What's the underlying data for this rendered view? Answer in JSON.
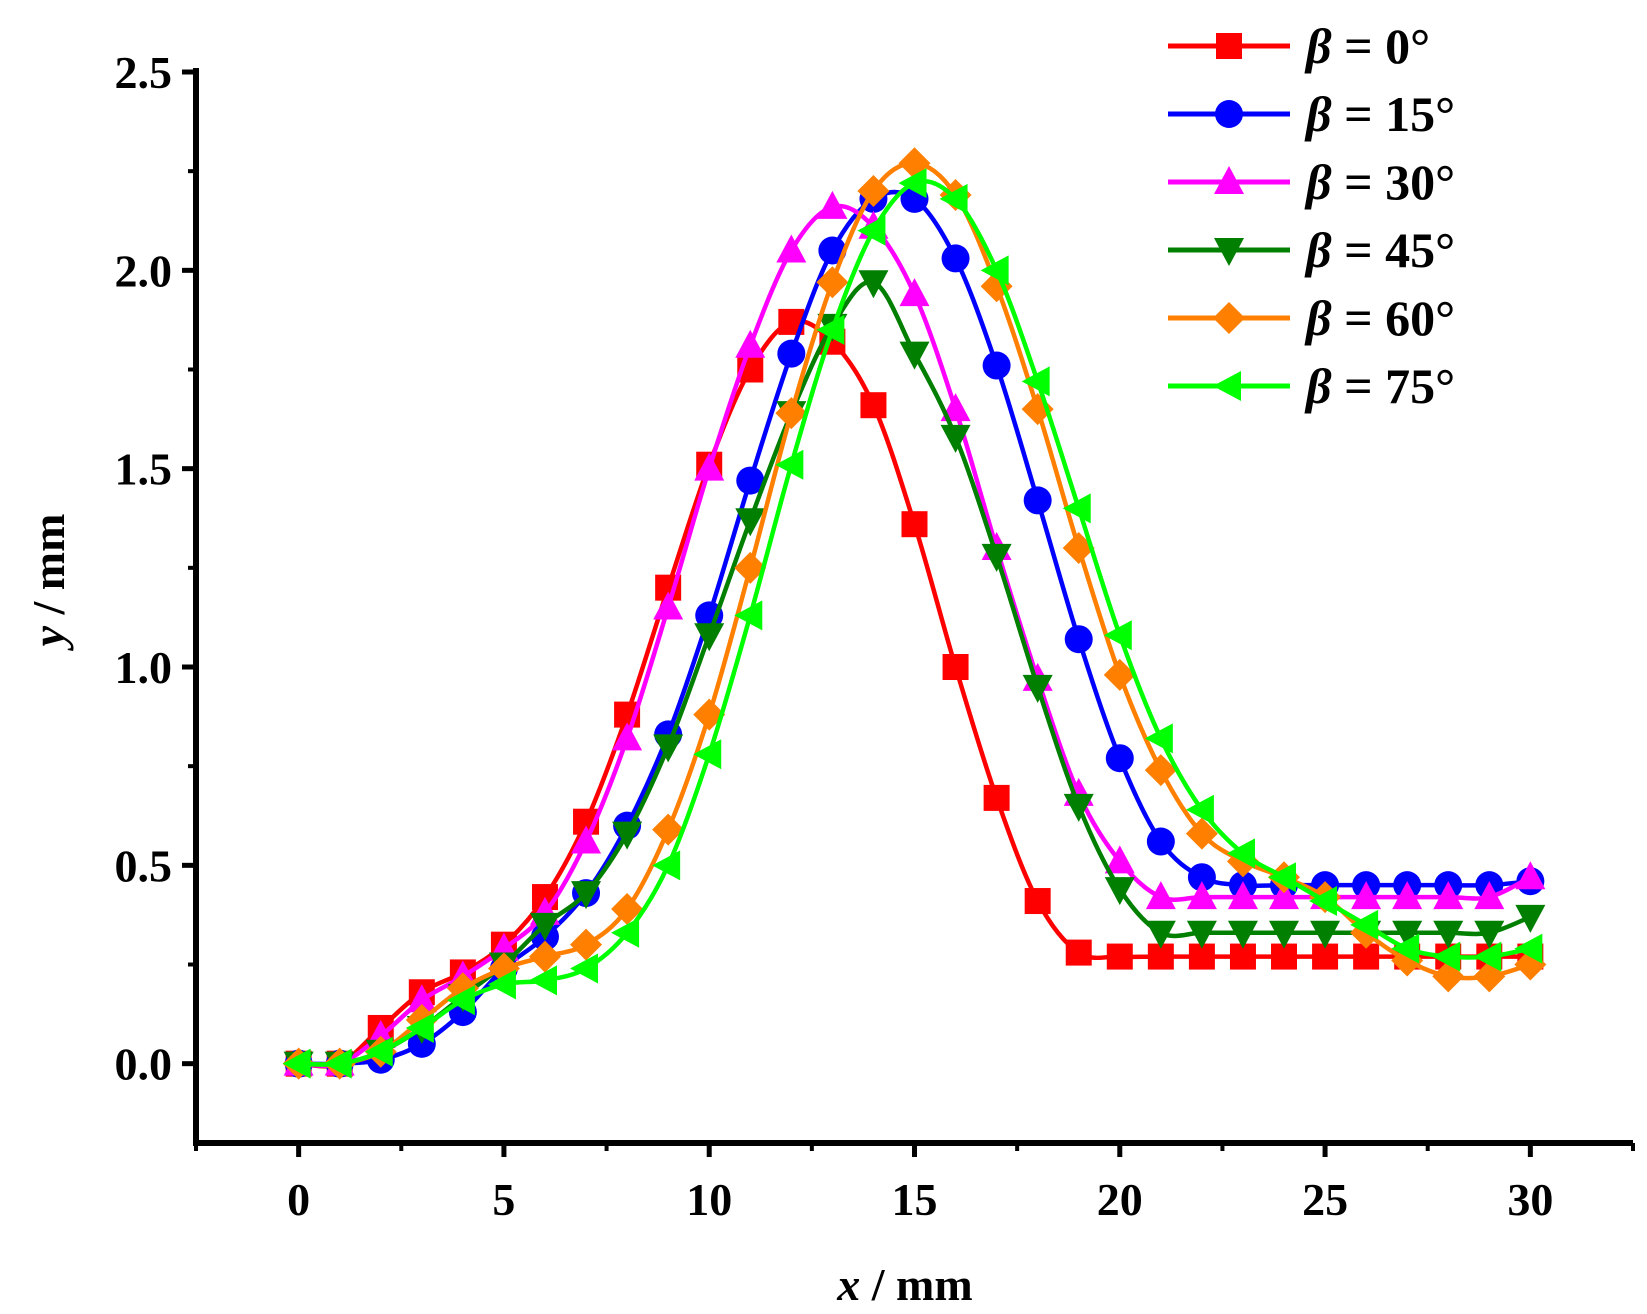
{
  "chart_data": {
    "type": "line",
    "title": "",
    "xlabel": {
      "var": "x",
      "unit": " / mm"
    },
    "ylabel": {
      "var": "y",
      "unit": " / mm"
    },
    "xlim": [
      -2.5,
      32.5
    ],
    "ylim": [
      -0.2,
      2.5
    ],
    "xticks": [
      0,
      5,
      10,
      15,
      20,
      25,
      30
    ],
    "xtick_labels": [
      "0",
      "5",
      "10",
      "15",
      "20",
      "25",
      "30"
    ],
    "yticks": [
      0.0,
      0.5,
      1.0,
      1.5,
      2.0,
      2.5
    ],
    "ytick_labels": [
      "0.0",
      "0.5",
      "1.0",
      "1.5",
      "2.0",
      "2.5"
    ],
    "legend_position": "top-right",
    "x": [
      0,
      1,
      2,
      3,
      4,
      5,
      6,
      7,
      8,
      9,
      10,
      11,
      12,
      13,
      14,
      15,
      16,
      17,
      18,
      19,
      20,
      21,
      22,
      23,
      24,
      25,
      26,
      27,
      28,
      29,
      30
    ],
    "series": [
      {
        "name": "β = 0°",
        "var": "β",
        "value_text": " = 0°",
        "color": "#ff0000",
        "marker": "square",
        "values": [
          0,
          0,
          0.09,
          0.18,
          0.23,
          0.3,
          0.42,
          0.61,
          0.88,
          1.2,
          1.51,
          1.75,
          1.87,
          1.82,
          1.66,
          1.36,
          1.0,
          0.67,
          0.41,
          0.28,
          0.27,
          0.27,
          0.27,
          0.27,
          0.27,
          0.27,
          0.27,
          0.27,
          0.27,
          0.27,
          0.27
        ]
      },
      {
        "name": "β = 15°",
        "var": "β",
        "value_text": " = 15°",
        "color": "#0000ff",
        "marker": "circle",
        "values": [
          0,
          0,
          0.01,
          0.05,
          0.13,
          0.24,
          0.32,
          0.43,
          0.6,
          0.83,
          1.13,
          1.47,
          1.79,
          2.05,
          2.18,
          2.18,
          2.03,
          1.76,
          1.42,
          1.07,
          0.77,
          0.56,
          0.47,
          0.45,
          0.45,
          0.45,
          0.45,
          0.45,
          0.45,
          0.45,
          0.46
        ]
      },
      {
        "name": "β = 30°",
        "var": "β",
        "value_text": " = 30°",
        "color": "#ff00ff",
        "marker": "triangle-up",
        "values": [
          0,
          0,
          0.07,
          0.16,
          0.22,
          0.29,
          0.38,
          0.56,
          0.82,
          1.15,
          1.5,
          1.81,
          2.05,
          2.16,
          2.11,
          1.94,
          1.65,
          1.3,
          0.97,
          0.68,
          0.51,
          0.42,
          0.42,
          0.42,
          0.42,
          0.42,
          0.42,
          0.42,
          0.42,
          0.42,
          0.47
        ]
      },
      {
        "name": "β = 45°",
        "var": "β",
        "value_text": " = 45°",
        "color": "#007f00",
        "marker": "triangle-down",
        "values": [
          0,
          0,
          0.03,
          0.09,
          0.17,
          0.25,
          0.35,
          0.43,
          0.58,
          0.8,
          1.08,
          1.37,
          1.64,
          1.86,
          1.97,
          1.79,
          1.58,
          1.28,
          0.95,
          0.65,
          0.44,
          0.33,
          0.33,
          0.33,
          0.33,
          0.33,
          0.33,
          0.33,
          0.33,
          0.33,
          0.37
        ]
      },
      {
        "name": "β = 60°",
        "var": "β",
        "value_text": " = 60°",
        "color": "#ff7f00",
        "marker": "diamond",
        "values": [
          0,
          0,
          0.03,
          0.11,
          0.19,
          0.24,
          0.27,
          0.3,
          0.39,
          0.59,
          0.88,
          1.25,
          1.64,
          1.97,
          2.2,
          2.27,
          2.19,
          1.96,
          1.65,
          1.3,
          0.98,
          0.74,
          0.58,
          0.51,
          0.47,
          0.42,
          0.33,
          0.26,
          0.22,
          0.22,
          0.25
        ]
      },
      {
        "name": "β = 75°",
        "var": "β",
        "value_text": " = 75°",
        "color": "#00ff00",
        "marker": "triangle-left",
        "values": [
          0,
          0,
          0.03,
          0.09,
          0.16,
          0.2,
          0.21,
          0.24,
          0.33,
          0.5,
          0.78,
          1.13,
          1.51,
          1.85,
          2.1,
          2.22,
          2.18,
          2.0,
          1.72,
          1.4,
          1.08,
          0.82,
          0.64,
          0.53,
          0.47,
          0.41,
          0.35,
          0.29,
          0.27,
          0.27,
          0.29
        ]
      }
    ]
  }
}
